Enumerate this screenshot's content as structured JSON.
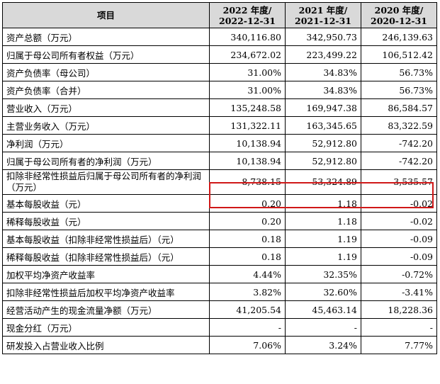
{
  "header": {
    "item": "项目",
    "c1": [
      "2022 年度/",
      "2022-12-31"
    ],
    "c2": [
      "2021 年度/",
      "2021-12-31"
    ],
    "c3": [
      "2020 年度/",
      "2020-12-31"
    ]
  },
  "rows": [
    {
      "label": "资产总额（万元）",
      "v": [
        "340,116.80",
        "342,950.73",
        "246,139.63"
      ]
    },
    {
      "label": "归属于母公司所有者权益（万元）",
      "v": [
        "234,672.02",
        "223,499.22",
        "106,512.42"
      ]
    },
    {
      "label": "资产负债率（母公司）",
      "v": [
        "31.00%",
        "34.83%",
        "56.73%"
      ]
    },
    {
      "label": "资产负债率（合并）",
      "v": [
        "31.00%",
        "34.83%",
        "56.73%"
      ]
    },
    {
      "label": "营业收入（万元）",
      "v": [
        "135,248.58",
        "169,947.38",
        "86,584.57"
      ]
    },
    {
      "label": "主营业务收入（万元）",
      "v": [
        "131,322.11",
        "163,345.65",
        "83,322.59"
      ]
    },
    {
      "label": "净利润（万元）",
      "v": [
        "10,138.94",
        "52,912.80",
        "-742.20"
      ]
    },
    {
      "label": "归属于母公司所有者的净利润（万元）",
      "v": [
        "10,138.94",
        "52,912.80",
        "-742.20"
      ]
    },
    {
      "label": "扣除非经常性损益后归属于母公司所有者的净利润（万元）",
      "v": [
        "8,738.15",
        "53,324.89",
        "-3,535.57"
      ],
      "highlight": true
    },
    {
      "label": "基本每股收益（元）",
      "v": [
        "0.20",
        "1.18",
        "-0.02"
      ]
    },
    {
      "label": "稀释每股收益（元）",
      "v": [
        "0.20",
        "1.18",
        "-0.02"
      ]
    },
    {
      "label": "基本每股收益（扣除非经常性损益后）（元）",
      "v": [
        "0.18",
        "1.19",
        "-0.09"
      ]
    },
    {
      "label": "稀释每股收益（扣除非经常性损益后）（元）",
      "v": [
        "0.18",
        "1.19",
        "-0.09"
      ]
    },
    {
      "label": "加权平均净资产收益率",
      "v": [
        "4.44%",
        "32.35%",
        "-0.72%"
      ]
    },
    {
      "label": "扣除非经常性损益后加权平均净资产收益率",
      "v": [
        "3.82%",
        "32.60%",
        "-3.41%"
      ]
    },
    {
      "label": "经营活动产生的现金流量净额（万元）",
      "v": [
        "41,205.54",
        "45,463.14",
        "18,228.36"
      ]
    },
    {
      "label": "现金分红（万元）",
      "v": [
        "-",
        "-",
        "-"
      ]
    },
    {
      "label": "研发投入占营业收入比例",
      "v": [
        "7.06%",
        "3.24%",
        "7.77%"
      ]
    }
  ],
  "colors": {
    "header_bg": "#d9d9d9",
    "highlight_border": "#d01818"
  }
}
